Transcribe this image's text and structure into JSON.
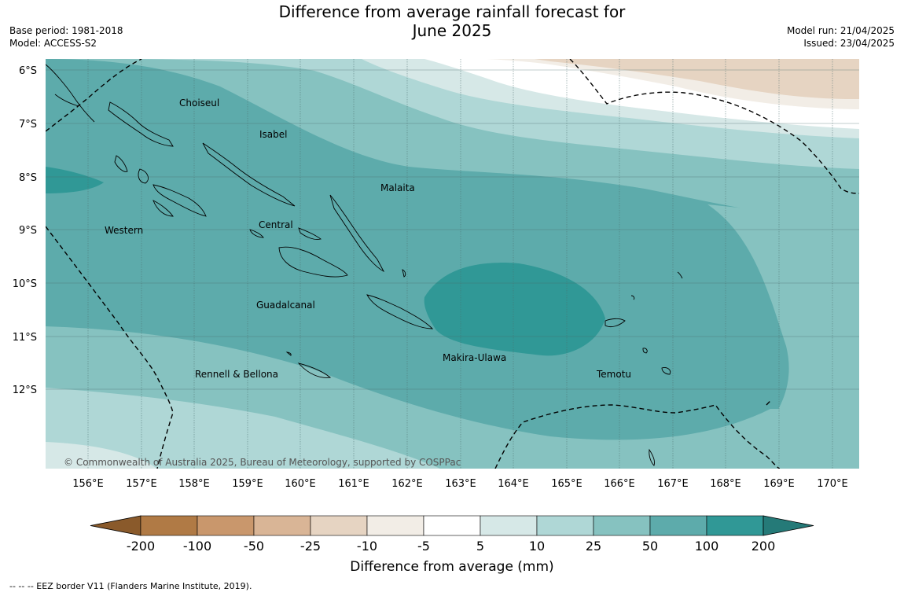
{
  "header": {
    "title_line1": "Difference from average rainfall forecast for",
    "title_line2": "June 2025",
    "base_period": "Base period: 1981-2018",
    "model": "Model: ACCESS-S2",
    "model_run": "Model run: 21/04/2025",
    "issued": "Issued: 23/04/2025"
  },
  "map": {
    "lat_labels": [
      "6°S",
      "7°S",
      "8°S",
      "9°S",
      "10°S",
      "11°S",
      "12°S"
    ],
    "lon_labels": [
      "156°E",
      "157°E",
      "158°E",
      "159°E",
      "160°E",
      "161°E",
      "162°E",
      "163°E",
      "164°E",
      "165°E",
      "166°E",
      "167°E",
      "168°E",
      "169°E",
      "170°E"
    ],
    "regions": [
      {
        "name": "Choiseul"
      },
      {
        "name": "Isabel"
      },
      {
        "name": "Malaita"
      },
      {
        "name": "Western"
      },
      {
        "name": "Central"
      },
      {
        "name": "Guadalcanal"
      },
      {
        "name": "Makira-Ulawa"
      },
      {
        "name": "Temotu"
      },
      {
        "name": "Rennell & Bellona"
      }
    ],
    "copyright": "© Commonwealth of Australia 2025, Bureau of Meteorology, supported by COSPPac"
  },
  "legend": {
    "title": "Difference from average (mm)",
    "ticks": [
      "-200",
      "-100",
      "-50",
      "-25",
      "-10",
      "-5",
      "5",
      "10",
      "25",
      "50",
      "100",
      "200"
    ],
    "colors": [
      "#8a5a2b",
      "#b07a45",
      "#c9976c",
      "#d9b596",
      "#e6d4c2",
      "#f2ede6",
      "#ffffff",
      "#d6e8e7",
      "#afd7d6",
      "#86c2c0",
      "#5dabab",
      "#309896",
      "#257a78"
    ]
  },
  "footer": {
    "eez_note": "--  --  -- EEZ border V11 (Flanders Marine Institute, 2019)."
  }
}
